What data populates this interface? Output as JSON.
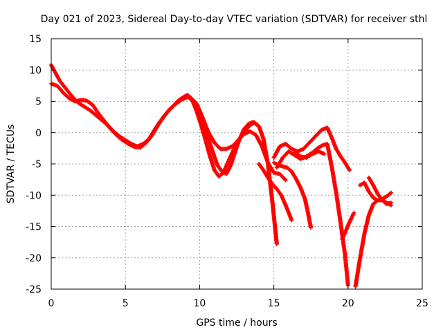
{
  "chart_data": {
    "type": "scatter",
    "title": "Day 021 of 2023, Sidereal Day-to-day VTEC variation (SDTVAR) for receiver sthl",
    "xlabel": "GPS time / hours",
    "ylabel": "SDTVAR / TECUs",
    "xlim": [
      0,
      25
    ],
    "ylim": [
      -25,
      15
    ],
    "xticks": [
      "0",
      "5",
      "10",
      "15",
      "20",
      "25"
    ],
    "yticks": [
      "15",
      "10",
      "5",
      "0",
      "-5",
      "-10",
      "-15",
      "-20",
      "-25"
    ],
    "grid": true,
    "marker": "+",
    "color": "#ff0000",
    "series": [
      {
        "x": [
          0,
          0.3,
          0.6,
          1.0,
          1.4,
          1.8,
          2.2,
          2.6,
          3.0,
          3.4,
          3.8,
          4.2,
          4.6,
          5.0,
          5.4,
          5.8,
          6.2,
          6.6,
          7.0,
          7.4,
          7.8,
          8.2,
          8.6,
          9.0,
          9.2,
          9.5,
          9.8,
          10.1,
          10.4,
          10.7,
          11.0,
          11.3,
          11.6,
          11.9,
          12.2,
          12.5,
          12.8,
          13.1,
          13.4,
          13.7,
          14.0,
          14.3,
          14.6,
          14.9,
          15.2
        ],
        "y": [
          10.8,
          9.5,
          8.2,
          7.0,
          5.8,
          4.8,
          4.2,
          3.6,
          2.8,
          2.0,
          1.2,
          0.2,
          -0.6,
          -1.2,
          -1.8,
          -2.2,
          -1.8,
          -1.0,
          0.6,
          2.0,
          3.2,
          4.2,
          5.2,
          5.8,
          6.0,
          5.2,
          3.4,
          1.2,
          -1.2,
          -3.8,
          -6.0,
          -7.0,
          -6.4,
          -4.8,
          -3.2,
          -1.8,
          -0.6,
          0.4,
          1.2,
          1.6,
          1.0,
          -1.0,
          -5.0,
          -11.0,
          -17.8
        ]
      },
      {
        "x": [
          0,
          0.4,
          0.8,
          1.2,
          1.6,
          2.0,
          2.4,
          2.8,
          3.2,
          3.6,
          4.0,
          4.4,
          4.8,
          5.2,
          5.6,
          6.0,
          6.4,
          6.8,
          7.2,
          7.6,
          8.0,
          8.4,
          8.8,
          9.2,
          9.6,
          10.0,
          10.3,
          10.6,
          10.9,
          11.2,
          11.5,
          11.8,
          12.1,
          12.4,
          12.7,
          13.0,
          13.3,
          13.6,
          13.9
        ],
        "y": [
          7.8,
          7.5,
          6.4,
          5.5,
          5.0,
          5.2,
          5.1,
          4.4,
          3.0,
          1.8,
          0.6,
          -0.4,
          -1.2,
          -1.8,
          -2.3,
          -2.4,
          -1.6,
          -0.4,
          1.2,
          2.6,
          3.8,
          4.6,
          5.3,
          5.7,
          5.0,
          3.0,
          1.2,
          -1.0,
          -3.2,
          -5.2,
          -6.2,
          -6.6,
          -5.2,
          -3.0,
          -1.0,
          0.6,
          1.4,
          1.7,
          1.2
        ]
      },
      {
        "x": [
          9.4,
          9.8,
          10.2,
          10.6,
          11.0,
          11.4,
          11.8,
          12.2,
          12.6,
          13.0,
          13.4,
          13.8,
          14.2,
          14.6,
          15.0,
          15.4,
          15.8
        ],
        "y": [
          5.6,
          4.6,
          2.4,
          0.0,
          -1.6,
          -2.6,
          -2.6,
          -2.2,
          -1.2,
          -0.2,
          0.2,
          -0.4,
          -2.2,
          -4.8,
          -6.4,
          -6.6,
          -7.6
        ]
      },
      {
        "x": [
          14.0,
          14.3,
          14.6,
          14.9,
          15.2,
          15.5,
          15.8,
          16.0,
          16.2
        ],
        "y": [
          -5.0,
          -6.0,
          -7.2,
          -8.2,
          -9.0,
          -10.0,
          -11.6,
          -12.8,
          -14.0
        ]
      },
      {
        "x": [
          15.0,
          15.3,
          15.6,
          15.9,
          16.2,
          16.5,
          16.8,
          17.1,
          17.3,
          17.5
        ],
        "y": [
          -4.8,
          -5.2,
          -5.4,
          -5.6,
          -6.2,
          -7.4,
          -8.8,
          -10.6,
          -12.8,
          -15.2
        ]
      },
      {
        "x": [
          15.0,
          15.4,
          15.8,
          16.2,
          16.6,
          17.0,
          17.4,
          17.8,
          18.2,
          18.6,
          18.9,
          19.2,
          19.5,
          19.8,
          20.1
        ],
        "y": [
          -4.0,
          -2.2,
          -1.8,
          -2.6,
          -3.0,
          -2.6,
          -1.6,
          -0.6,
          0.4,
          0.8,
          -0.8,
          -2.6,
          -3.8,
          -4.8,
          -6.0
        ]
      },
      {
        "x": [
          15.2,
          15.6,
          16.0,
          16.4,
          16.8,
          17.2,
          17.6,
          18.0,
          18.3,
          18.6,
          18.9,
          19.2,
          19.5,
          19.8,
          20.0
        ],
        "y": [
          -5.6,
          -4.0,
          -3.0,
          -3.6,
          -4.2,
          -3.8,
          -3.2,
          -2.4,
          -2.0,
          -1.8,
          -5.4,
          -9.6,
          -14.4,
          -19.6,
          -24.4
        ]
      },
      {
        "x": [
          16.4,
          16.8,
          17.2,
          17.6,
          18.0,
          18.4
        ],
        "y": [
          -3.2,
          -3.8,
          -4.0,
          -3.4,
          -3.0,
          -3.4
        ]
      },
      {
        "x": [
          19.6,
          19.8,
          20.0,
          20.2,
          20.4
        ],
        "y": [
          -17.0,
          -16.0,
          -14.8,
          -13.8,
          -12.8
        ]
      },
      {
        "x": [
          20.5,
          20.8,
          21.1,
          21.4,
          21.7,
          22.0,
          22.3,
          22.6,
          22.9
        ],
        "y": [
          -24.6,
          -20.2,
          -16.2,
          -13.2,
          -11.4,
          -10.8,
          -10.8,
          -11.2,
          -11.6
        ]
      },
      {
        "x": [
          20.8,
          21.1,
          21.4,
          21.7,
          22.0,
          22.3,
          22.6,
          22.9
        ],
        "y": [
          -8.4,
          -8.0,
          -9.4,
          -10.4,
          -10.8,
          -10.6,
          -10.2,
          -9.6
        ]
      },
      {
        "x": [
          21.4,
          21.7,
          22.0,
          22.3,
          22.6,
          22.9
        ],
        "y": [
          -7.2,
          -8.4,
          -9.8,
          -10.8,
          -11.4,
          -11.2
        ]
      }
    ]
  }
}
